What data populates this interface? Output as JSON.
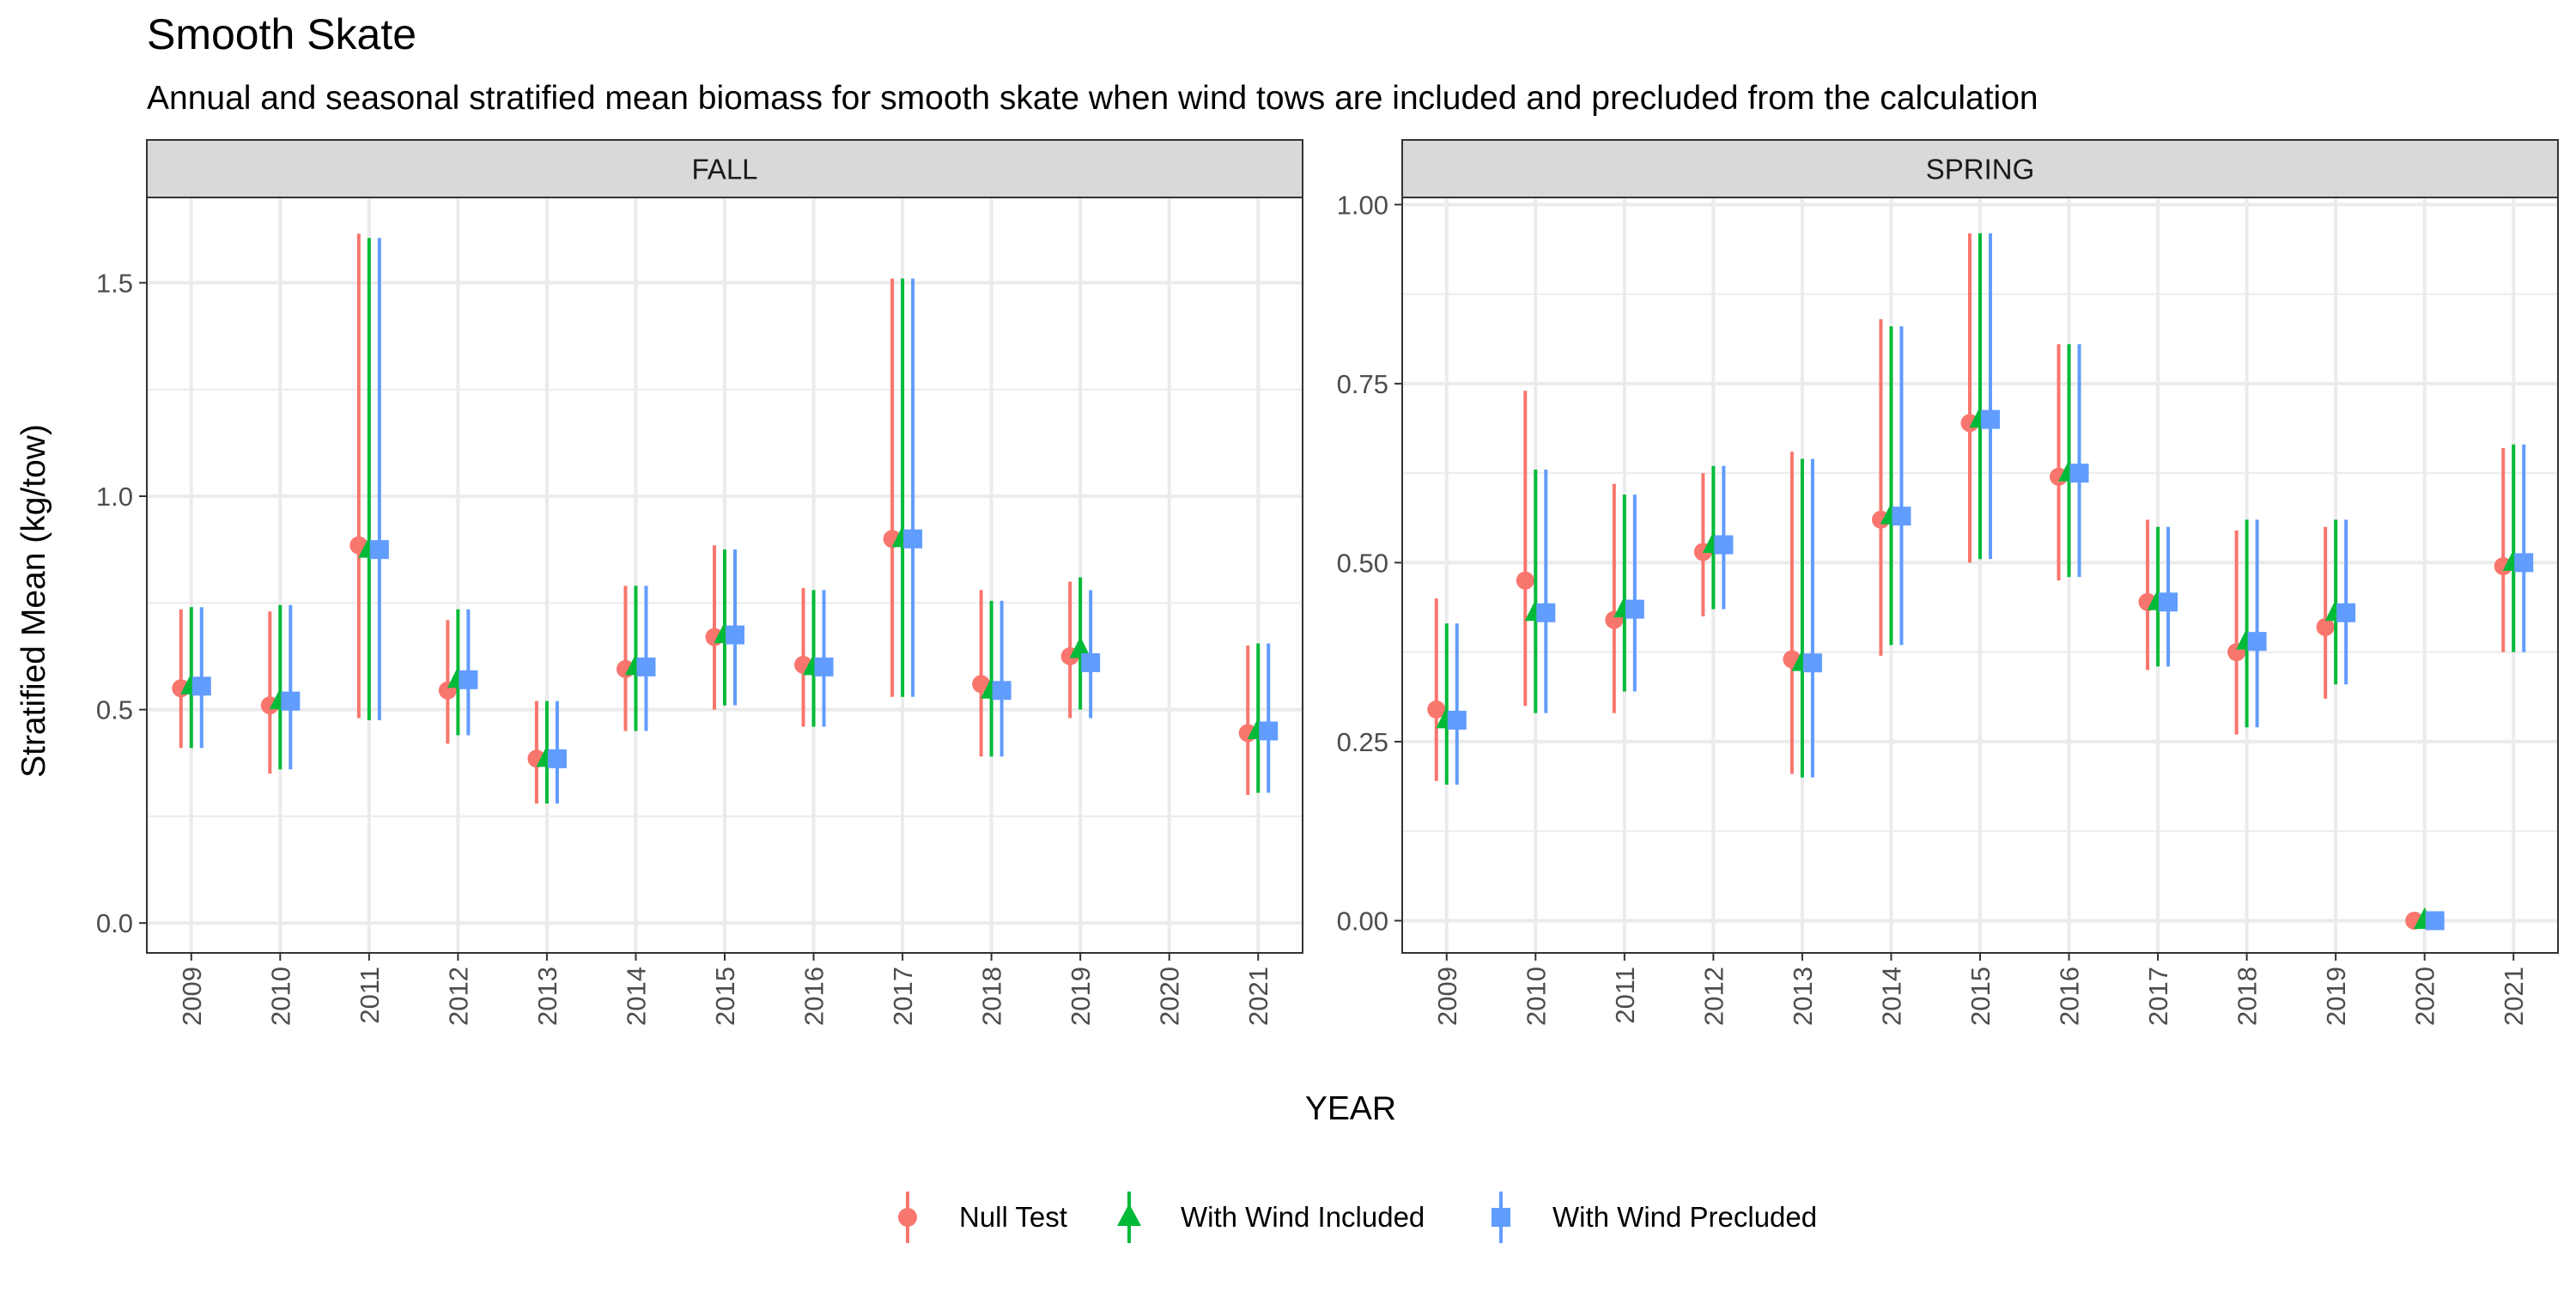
{
  "chart_data": {
    "type": "scatter",
    "title": "Smooth Skate",
    "subtitle": "Annual and seasonal stratified mean biomass for smooth skate when wind tows are included and precluded from the calculation",
    "xlabel": "YEAR",
    "ylabel": "Stratified Mean (kg/tow)",
    "legend_position": "bottom",
    "grid": true,
    "years": [
      "2009",
      "2010",
      "2011",
      "2012",
      "2013",
      "2014",
      "2015",
      "2016",
      "2017",
      "2018",
      "2019",
      "2020",
      "2021"
    ],
    "series_styles": [
      {
        "name": "Null Test",
        "color": "#F8766D",
        "shape": "circle"
      },
      {
        "name": "With Wind Included",
        "color": "#00BA38",
        "shape": "triangle"
      },
      {
        "name": "With Wind Precluded",
        "color": "#619CFF",
        "shape": "square"
      }
    ],
    "panels": [
      {
        "label": "FALL",
        "ylim": [
          -0.07,
          1.7
        ],
        "yticks": [
          0.0,
          0.5,
          1.0,
          1.5
        ],
        "ytick_labels": [
          "0.0",
          "0.5",
          "1.0",
          "1.5"
        ],
        "series": [
          {
            "name": "Null Test",
            "values": [
              {
                "year": "2009",
                "mean": 0.55,
                "lo": 0.41,
                "hi": 0.735
              },
              {
                "year": "2010",
                "mean": 0.51,
                "lo": 0.35,
                "hi": 0.73
              },
              {
                "year": "2011",
                "mean": 0.885,
                "lo": 0.48,
                "hi": 1.615
              },
              {
                "year": "2012",
                "mean": 0.545,
                "lo": 0.42,
                "hi": 0.71
              },
              {
                "year": "2013",
                "mean": 0.385,
                "lo": 0.28,
                "hi": 0.52
              },
              {
                "year": "2014",
                "mean": 0.595,
                "lo": 0.45,
                "hi": 0.79
              },
              {
                "year": "2015",
                "mean": 0.67,
                "lo": 0.5,
                "hi": 0.885
              },
              {
                "year": "2016",
                "mean": 0.605,
                "lo": 0.46,
                "hi": 0.785
              },
              {
                "year": "2017",
                "mean": 0.9,
                "lo": 0.53,
                "hi": 1.51
              },
              {
                "year": "2018",
                "mean": 0.56,
                "lo": 0.39,
                "hi": 0.78
              },
              {
                "year": "2019",
                "mean": 0.625,
                "lo": 0.48,
                "hi": 0.8
              },
              {
                "year": "2021",
                "mean": 0.445,
                "lo": 0.3,
                "hi": 0.65
              }
            ]
          },
          {
            "name": "With Wind Included",
            "values": [
              {
                "year": "2009",
                "mean": 0.555,
                "lo": 0.41,
                "hi": 0.74
              },
              {
                "year": "2010",
                "mean": 0.52,
                "lo": 0.36,
                "hi": 0.745
              },
              {
                "year": "2011",
                "mean": 0.875,
                "lo": 0.475,
                "hi": 1.605
              },
              {
                "year": "2012",
                "mean": 0.57,
                "lo": 0.44,
                "hi": 0.735
              },
              {
                "year": "2013",
                "mean": 0.385,
                "lo": 0.28,
                "hi": 0.52
              },
              {
                "year": "2014",
                "mean": 0.6,
                "lo": 0.45,
                "hi": 0.79
              },
              {
                "year": "2015",
                "mean": 0.675,
                "lo": 0.51,
                "hi": 0.875
              },
              {
                "year": "2016",
                "mean": 0.6,
                "lo": 0.46,
                "hi": 0.78
              },
              {
                "year": "2017",
                "mean": 0.9,
                "lo": 0.53,
                "hi": 1.51
              },
              {
                "year": "2018",
                "mean": 0.545,
                "lo": 0.39,
                "hi": 0.755
              },
              {
                "year": "2019",
                "mean": 0.64,
                "lo": 0.5,
                "hi": 0.81
              },
              {
                "year": "2021",
                "mean": 0.45,
                "lo": 0.305,
                "hi": 0.655
              }
            ]
          },
          {
            "name": "With Wind Precluded",
            "values": [
              {
                "year": "2009",
                "mean": 0.555,
                "lo": 0.41,
                "hi": 0.74
              },
              {
                "year": "2010",
                "mean": 0.52,
                "lo": 0.36,
                "hi": 0.745
              },
              {
                "year": "2011",
                "mean": 0.875,
                "lo": 0.475,
                "hi": 1.605
              },
              {
                "year": "2012",
                "mean": 0.57,
                "lo": 0.44,
                "hi": 0.735
              },
              {
                "year": "2013",
                "mean": 0.385,
                "lo": 0.28,
                "hi": 0.52
              },
              {
                "year": "2014",
                "mean": 0.6,
                "lo": 0.45,
                "hi": 0.79
              },
              {
                "year": "2015",
                "mean": 0.675,
                "lo": 0.51,
                "hi": 0.875
              },
              {
                "year": "2016",
                "mean": 0.6,
                "lo": 0.46,
                "hi": 0.78
              },
              {
                "year": "2017",
                "mean": 0.9,
                "lo": 0.53,
                "hi": 1.51
              },
              {
                "year": "2018",
                "mean": 0.545,
                "lo": 0.39,
                "hi": 0.755
              },
              {
                "year": "2019",
                "mean": 0.61,
                "lo": 0.48,
                "hi": 0.78
              },
              {
                "year": "2021",
                "mean": 0.45,
                "lo": 0.305,
                "hi": 0.655
              }
            ]
          }
        ]
      },
      {
        "label": "SPRING",
        "ylim": [
          -0.045,
          1.01
        ],
        "yticks": [
          0.0,
          0.25,
          0.5,
          0.75,
          1.0
        ],
        "ytick_labels": [
          "0.00",
          "0.25",
          "0.50",
          "0.75",
          "1.00"
        ],
        "series": [
          {
            "name": "Null Test",
            "values": [
              {
                "year": "2009",
                "mean": 0.295,
                "lo": 0.195,
                "hi": 0.45
              },
              {
                "year": "2010",
                "mean": 0.475,
                "lo": 0.3,
                "hi": 0.74
              },
              {
                "year": "2011",
                "mean": 0.42,
                "lo": 0.29,
                "hi": 0.61
              },
              {
                "year": "2012",
                "mean": 0.515,
                "lo": 0.425,
                "hi": 0.625
              },
              {
                "year": "2013",
                "mean": 0.365,
                "lo": 0.205,
                "hi": 0.655
              },
              {
                "year": "2014",
                "mean": 0.56,
                "lo": 0.37,
                "hi": 0.84
              },
              {
                "year": "2015",
                "mean": 0.695,
                "lo": 0.5,
                "hi": 0.96
              },
              {
                "year": "2016",
                "mean": 0.62,
                "lo": 0.475,
                "hi": 0.805
              },
              {
                "year": "2017",
                "mean": 0.445,
                "lo": 0.35,
                "hi": 0.56
              },
              {
                "year": "2018",
                "mean": 0.375,
                "lo": 0.26,
                "hi": 0.545
              },
              {
                "year": "2019",
                "mean": 0.41,
                "lo": 0.31,
                "hi": 0.55
              },
              {
                "year": "2020",
                "mean": 0.0,
                "lo": 0.0,
                "hi": 0.0
              },
              {
                "year": "2021",
                "mean": 0.495,
                "lo": 0.375,
                "hi": 0.66
              }
            ]
          },
          {
            "name": "With Wind Included",
            "values": [
              {
                "year": "2009",
                "mean": 0.28,
                "lo": 0.19,
                "hi": 0.415
              },
              {
                "year": "2010",
                "mean": 0.43,
                "lo": 0.29,
                "hi": 0.63
              },
              {
                "year": "2011",
                "mean": 0.435,
                "lo": 0.32,
                "hi": 0.595
              },
              {
                "year": "2012",
                "mean": 0.525,
                "lo": 0.435,
                "hi": 0.635
              },
              {
                "year": "2013",
                "mean": 0.36,
                "lo": 0.2,
                "hi": 0.645
              },
              {
                "year": "2014",
                "mean": 0.565,
                "lo": 0.385,
                "hi": 0.83
              },
              {
                "year": "2015",
                "mean": 0.7,
                "lo": 0.505,
                "hi": 0.96
              },
              {
                "year": "2016",
                "mean": 0.625,
                "lo": 0.48,
                "hi": 0.805
              },
              {
                "year": "2017",
                "mean": 0.445,
                "lo": 0.355,
                "hi": 0.55
              },
              {
                "year": "2018",
                "mean": 0.39,
                "lo": 0.27,
                "hi": 0.56
              },
              {
                "year": "2019",
                "mean": 0.43,
                "lo": 0.33,
                "hi": 0.56
              },
              {
                "year": "2020",
                "mean": 0.0,
                "lo": 0.0,
                "hi": 0.0
              },
              {
                "year": "2021",
                "mean": 0.5,
                "lo": 0.375,
                "hi": 0.665
              }
            ]
          },
          {
            "name": "With Wind Precluded",
            "values": [
              {
                "year": "2009",
                "mean": 0.28,
                "lo": 0.19,
                "hi": 0.415
              },
              {
                "year": "2010",
                "mean": 0.43,
                "lo": 0.29,
                "hi": 0.63
              },
              {
                "year": "2011",
                "mean": 0.435,
                "lo": 0.32,
                "hi": 0.595
              },
              {
                "year": "2012",
                "mean": 0.525,
                "lo": 0.435,
                "hi": 0.635
              },
              {
                "year": "2013",
                "mean": 0.36,
                "lo": 0.2,
                "hi": 0.645
              },
              {
                "year": "2014",
                "mean": 0.565,
                "lo": 0.385,
                "hi": 0.83
              },
              {
                "year": "2015",
                "mean": 0.7,
                "lo": 0.505,
                "hi": 0.96
              },
              {
                "year": "2016",
                "mean": 0.625,
                "lo": 0.48,
                "hi": 0.805
              },
              {
                "year": "2017",
                "mean": 0.445,
                "lo": 0.355,
                "hi": 0.55
              },
              {
                "year": "2018",
                "mean": 0.39,
                "lo": 0.27,
                "hi": 0.56
              },
              {
                "year": "2019",
                "mean": 0.43,
                "lo": 0.33,
                "hi": 0.56
              },
              {
                "year": "2020",
                "mean": 0.0,
                "lo": 0.0,
                "hi": 0.0
              },
              {
                "year": "2021",
                "mean": 0.5,
                "lo": 0.375,
                "hi": 0.665
              }
            ]
          }
        ]
      }
    ]
  }
}
